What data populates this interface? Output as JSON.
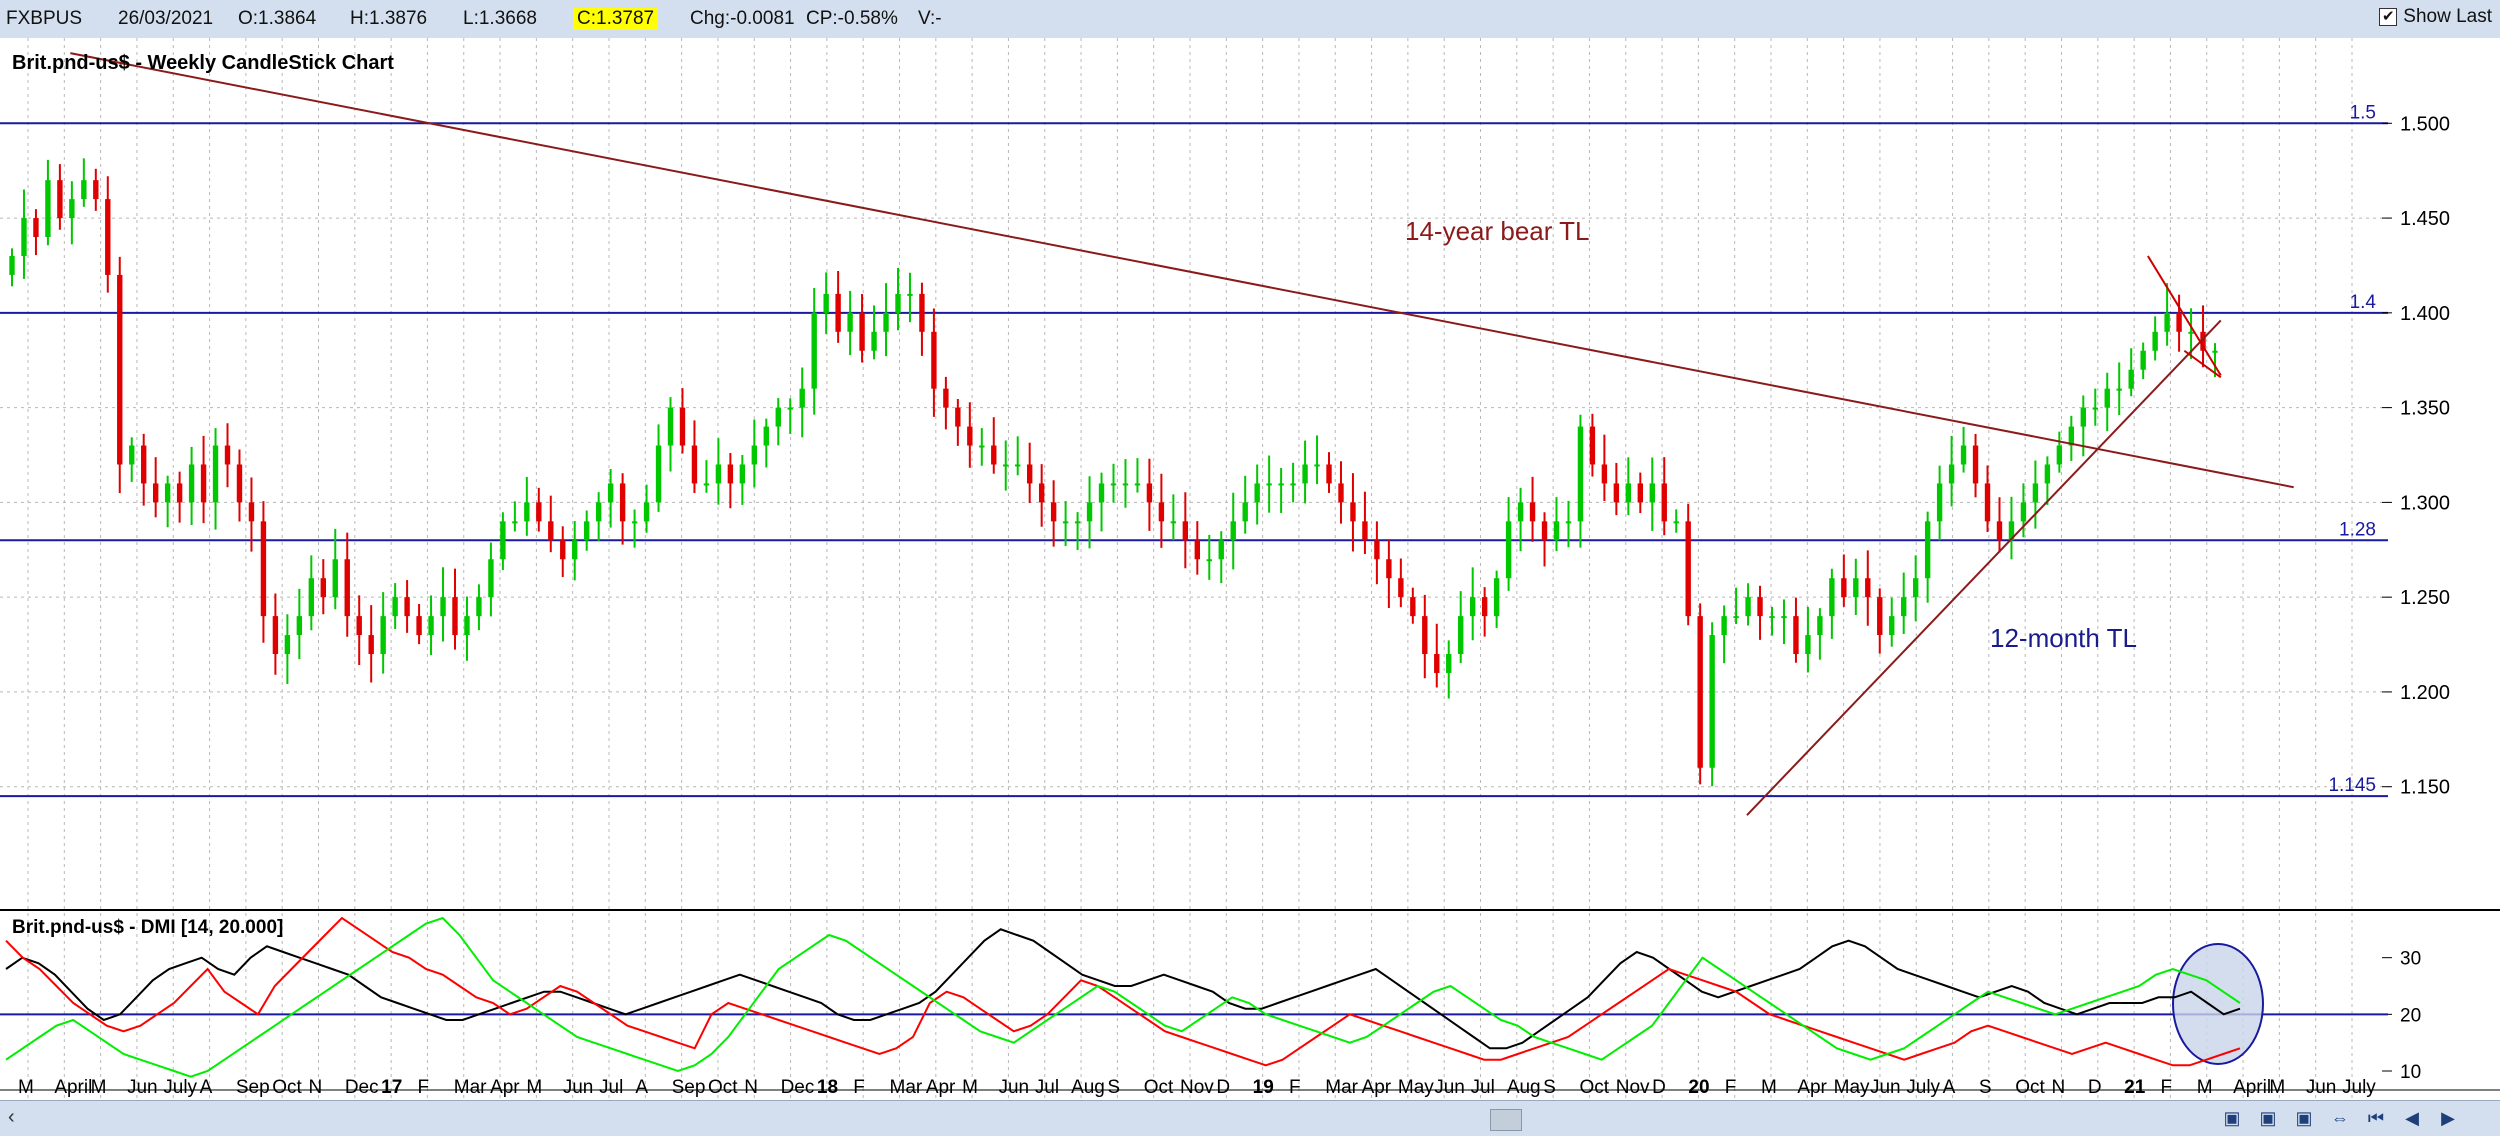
{
  "header": {
    "symbol": "FXBPUS",
    "date": "26/03/2021",
    "open": "O:1.3864",
    "high": "H:1.3876",
    "low": "L:1.3668",
    "close": "C:1.3787",
    "change": "Chg:-0.0081",
    "change_pct": "CP:-0.58%",
    "volume": "V:-",
    "show_last_label": "Show Last",
    "show_last_checked": "✔"
  },
  "chart_data": [
    {
      "type": "candlestick",
      "title": "Brit.pnd-us$ - Weekly CandleStick Chart",
      "ylim": [
        1.105,
        1.545
      ],
      "yticks": [
        "1.500",
        "1.450",
        "1.400",
        "1.350",
        "1.300",
        "1.250",
        "1.200",
        "1.150"
      ],
      "horizontal_levels": [
        {
          "label": "1.5",
          "value": 1.5
        },
        {
          "label": "1.4",
          "value": 1.4
        },
        {
          "label": "1.28",
          "value": 1.28
        },
        {
          "label": "1.145",
          "value": 1.145
        }
      ],
      "trendlines": [
        {
          "name": "14-year bear TL",
          "start": [
            "2016-05",
            1.537
          ],
          "end": [
            "2021-06",
            1.308
          ],
          "color": "#8b1a1a"
        },
        {
          "name": "12-month TL",
          "start": [
            "2020-03",
            1.135
          ],
          "end": [
            "2021-04",
            1.396
          ],
          "color": "#8b1a1a"
        },
        {
          "name": "",
          "start": [
            "2021-02",
            1.43
          ],
          "end": [
            "2021-04",
            1.367
          ],
          "color": "#cc0000"
        },
        {
          "name": "",
          "start": [
            "2021-03",
            1.38
          ],
          "end": [
            "2021-04",
            1.366
          ],
          "color": "#cc0000"
        }
      ],
      "annotations": [
        {
          "text": "14-year bear TL",
          "color": "#8b1a1a"
        },
        {
          "text": "12-month TL",
          "color": "#1a1a8b"
        }
      ],
      "weekly_close": [
        1.43,
        1.45,
        1.44,
        1.47,
        1.45,
        1.46,
        1.47,
        1.46,
        1.42,
        1.32,
        1.33,
        1.31,
        1.3,
        1.31,
        1.3,
        1.32,
        1.3,
        1.33,
        1.32,
        1.3,
        1.29,
        1.24,
        1.22,
        1.23,
        1.24,
        1.26,
        1.25,
        1.27,
        1.24,
        1.23,
        1.22,
        1.24,
        1.25,
        1.24,
        1.23,
        1.24,
        1.25,
        1.23,
        1.24,
        1.25,
        1.27,
        1.29,
        1.29,
        1.3,
        1.29,
        1.28,
        1.27,
        1.28,
        1.29,
        1.3,
        1.31,
        1.29,
        1.29,
        1.3,
        1.33,
        1.35,
        1.33,
        1.31,
        1.31,
        1.32,
        1.31,
        1.32,
        1.33,
        1.34,
        1.35,
        1.35,
        1.36,
        1.4,
        1.41,
        1.39,
        1.4,
        1.38,
        1.39,
        1.4,
        1.41,
        1.41,
        1.39,
        1.36,
        1.35,
        1.34,
        1.33,
        1.33,
        1.32,
        1.32,
        1.32,
        1.31,
        1.3,
        1.29,
        1.29,
        1.29,
        1.3,
        1.31,
        1.31,
        1.31,
        1.31,
        1.3,
        1.29,
        1.29,
        1.28,
        1.27,
        1.27,
        1.28,
        1.29,
        1.3,
        1.31,
        1.31,
        1.31,
        1.31,
        1.32,
        1.32,
        1.31,
        1.3,
        1.29,
        1.28,
        1.27,
        1.26,
        1.25,
        1.24,
        1.22,
        1.21,
        1.22,
        1.24,
        1.25,
        1.24,
        1.26,
        1.29,
        1.3,
        1.29,
        1.28,
        1.29,
        1.29,
        1.34,
        1.32,
        1.31,
        1.3,
        1.31,
        1.3,
        1.31,
        1.29,
        1.29,
        1.24,
        1.16,
        1.23,
        1.24,
        1.24,
        1.25,
        1.24,
        1.24,
        1.24,
        1.22,
        1.23,
        1.24,
        1.26,
        1.25,
        1.26,
        1.25,
        1.23,
        1.24,
        1.25,
        1.26,
        1.29,
        1.31,
        1.32,
        1.33,
        1.31,
        1.29,
        1.28,
        1.29,
        1.3,
        1.31,
        1.32,
        1.33,
        1.34,
        1.35,
        1.35,
        1.36,
        1.36,
        1.37,
        1.38,
        1.39,
        1.4,
        1.39,
        1.39,
        1.38,
        1.38
      ]
    },
    {
      "type": "line",
      "title": "Brit.pnd-us$ - DMI [14, 20.000]",
      "ylim": [
        7,
        37
      ],
      "yticks": [
        "30",
        "20",
        "10"
      ],
      "threshold": 20,
      "series": [
        {
          "color": "#000000",
          "values": [
            28,
            30,
            29,
            27,
            24,
            21,
            19,
            20,
            23,
            26,
            28,
            29,
            30,
            28,
            27,
            30,
            32,
            31,
            30,
            29,
            28,
            27,
            25,
            23,
            22,
            21,
            20,
            19,
            19,
            20,
            21,
            22,
            23,
            24,
            24,
            23,
            22,
            21,
            20,
            21,
            22,
            23,
            24,
            25,
            26,
            27,
            26,
            25,
            24,
            23,
            22,
            20,
            19,
            19,
            20,
            21,
            22,
            24,
            27,
            30,
            33,
            35,
            34,
            33,
            31,
            29,
            27,
            26,
            25,
            25,
            26,
            27,
            26,
            25,
            24,
            22,
            21,
            21,
            22,
            23,
            24,
            25,
            26,
            27,
            28,
            26,
            24,
            22,
            20,
            18,
            16,
            14,
            14,
            15,
            17,
            19,
            21,
            23,
            26,
            29,
            31,
            30,
            28,
            26,
            24,
            23,
            24,
            25,
            26,
            27,
            28,
            30,
            32,
            33,
            32,
            30,
            28,
            27,
            26,
            25,
            24,
            23,
            24,
            25,
            24,
            22,
            21,
            20,
            21,
            22,
            22,
            22,
            23,
            23,
            24,
            22,
            20,
            21
          ]
        },
        {
          "color": "#ff0000",
          "values": [
            33,
            30,
            28,
            25,
            22,
            20,
            18,
            17,
            18,
            20,
            22,
            25,
            28,
            24,
            22,
            20,
            25,
            28,
            31,
            34,
            37,
            35,
            33,
            31,
            30,
            28,
            27,
            25,
            23,
            22,
            20,
            21,
            23,
            25,
            24,
            22,
            20,
            18,
            17,
            16,
            15,
            14,
            20,
            22,
            21,
            20,
            19,
            18,
            17,
            16,
            15,
            14,
            13,
            14,
            16,
            22,
            24,
            23,
            21,
            19,
            17,
            18,
            20,
            23,
            26,
            25,
            23,
            21,
            19,
            17,
            16,
            15,
            14,
            13,
            12,
            11,
            12,
            14,
            16,
            18,
            20,
            19,
            18,
            17,
            16,
            15,
            14,
            13,
            12,
            12,
            13,
            14,
            15,
            16,
            18,
            20,
            22,
            24,
            26,
            28,
            27,
            26,
            25,
            24,
            22,
            20,
            19,
            18,
            17,
            16,
            15,
            14,
            13,
            12,
            13,
            14,
            15,
            17,
            18,
            17,
            16,
            15,
            14,
            13,
            14,
            15,
            14,
            13,
            12,
            11,
            11,
            12,
            13,
            14
          ]
        },
        {
          "color": "#00ee00",
          "values": [
            12,
            14,
            16,
            18,
            19,
            17,
            15,
            13,
            12,
            11,
            10,
            9,
            10,
            12,
            14,
            16,
            18,
            20,
            22,
            24,
            26,
            28,
            30,
            32,
            34,
            36,
            38,
            34,
            30,
            26,
            24,
            22,
            20,
            18,
            16,
            15,
            14,
            13,
            12,
            11,
            10,
            11,
            13,
            16,
            20,
            24,
            28,
            30,
            32,
            34,
            33,
            31,
            29,
            27,
            25,
            23,
            21,
            19,
            17,
            16,
            15,
            17,
            19,
            21,
            23,
            25,
            24,
            22,
            20,
            18,
            17,
            19,
            21,
            23,
            22,
            20,
            19,
            18,
            17,
            16,
            15,
            16,
            18,
            20,
            22,
            24,
            25,
            23,
            21,
            19,
            18,
            16,
            15,
            14,
            13,
            12,
            14,
            16,
            18,
            22,
            26,
            30,
            28,
            26,
            24,
            22,
            20,
            18,
            16,
            14,
            13,
            12,
            13,
            14,
            16,
            18,
            20,
            22,
            24,
            23,
            22,
            21,
            20,
            21,
            22,
            23,
            24,
            25,
            27,
            28,
            27,
            26,
            24,
            22
          ]
        }
      ]
    }
  ],
  "x_axis_labels": [
    "M",
    "April",
    "M",
    "Jun",
    "July",
    "A",
    "Sep",
    "Oct",
    "N",
    "Dec",
    "17",
    "F",
    "Mar",
    "Apr",
    "M",
    "Jun",
    "Jul",
    "A",
    "Sep",
    "Oct",
    "N",
    "Dec",
    "18",
    "F",
    "Mar",
    "Apr",
    "M",
    "Jun",
    "Jul",
    "Aug",
    "S",
    "Oct",
    "Nov",
    "D",
    "19",
    "F",
    "Mar",
    "Apr",
    "May",
    "Jun",
    "Jul",
    "Aug",
    "S",
    "Oct",
    "Nov",
    "D",
    "20",
    "F",
    "M",
    "Apr",
    "May",
    "Jun",
    "July",
    "A",
    "S",
    "Oct",
    "N",
    "D",
    "21",
    "F",
    "M",
    "April",
    "M",
    "Jun",
    "July"
  ],
  "bold_x_labels": [
    "17",
    "18",
    "19",
    "20",
    "21"
  ],
  "colors": {
    "up": "#00c800",
    "down": "#e00000",
    "level": "#1a1aa0",
    "trendline": "#8b1a1a",
    "grid": "#b8b8b8",
    "highlight": "#c8d4e8"
  }
}
